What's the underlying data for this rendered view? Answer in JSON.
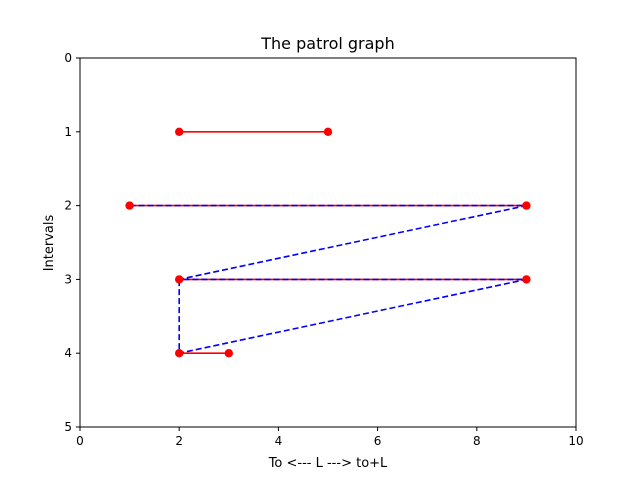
{
  "chart_data": {
    "type": "line",
    "title": "The patrol graph",
    "xlabel": "To <--- L ---> to+L",
    "ylabel": "Intervals",
    "xlim": [
      0,
      10
    ],
    "ylim": [
      5,
      0
    ],
    "y_inverted": true,
    "grid": false,
    "legend": "none",
    "xticks": [
      0,
      2,
      4,
      6,
      8,
      10
    ],
    "yticks": [
      0,
      1,
      2,
      3,
      4,
      5
    ],
    "series": [
      {
        "style": "solid-red-with-markers",
        "color": "#ff0000",
        "segments": [
          {
            "points": [
              [
                2,
                1
              ],
              [
                5,
                1
              ]
            ]
          },
          {
            "points": [
              [
                1,
                2
              ],
              [
                9,
                2
              ]
            ]
          },
          {
            "points": [
              [
                2,
                3
              ],
              [
                9,
                3
              ]
            ]
          },
          {
            "points": [
              [
                2,
                4
              ],
              [
                3,
                4
              ]
            ]
          }
        ]
      },
      {
        "style": "dashed-blue",
        "color": "#0000ff",
        "points": [
          [
            1,
            2
          ],
          [
            9,
            2
          ],
          [
            2,
            3
          ],
          [
            9,
            3
          ],
          [
            2,
            4
          ],
          [
            2,
            3
          ]
        ]
      }
    ]
  }
}
